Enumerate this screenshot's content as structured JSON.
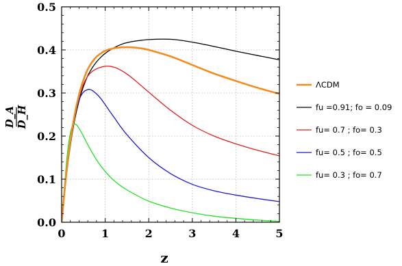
{
  "chart_data": {
    "type": "line",
    "title": "",
    "xlabel": "z",
    "ylabel_num": "D_A",
    "ylabel_den": "D_H",
    "xlim": [
      0,
      5
    ],
    "ylim": [
      0,
      0.5
    ],
    "xticks": [
      0,
      1,
      2,
      3,
      4,
      5
    ],
    "yticks": [
      0.0,
      0.1,
      0.2,
      0.3,
      0.4,
      0.5
    ],
    "grid": true,
    "legend_position": "right",
    "series": [
      {
        "name": "ΛCDM",
        "color": "#f28c1e",
        "width": 2.6,
        "x": [
          0,
          0.1,
          0.2,
          0.3,
          0.4,
          0.5,
          0.6,
          0.7,
          0.8,
          0.9,
          1.0,
          1.2,
          1.4,
          1.6,
          1.8,
          2.0,
          2.5,
          3.0,
          3.5,
          4.0,
          4.5,
          5.0
        ],
        "y": [
          0,
          0.105,
          0.188,
          0.25,
          0.296,
          0.33,
          0.355,
          0.372,
          0.384,
          0.392,
          0.398,
          0.404,
          0.406,
          0.406,
          0.404,
          0.4,
          0.385,
          0.365,
          0.345,
          0.328,
          0.312,
          0.298
        ]
      },
      {
        "name": "fu =0.91;  fo = 0.09",
        "color": "#000000",
        "width": 1.3,
        "x": [
          0,
          0.1,
          0.2,
          0.3,
          0.4,
          0.5,
          0.6,
          0.7,
          0.8,
          0.9,
          1.0,
          1.2,
          1.4,
          1.6,
          1.8,
          2.0,
          2.3,
          2.6,
          3.0,
          3.5,
          4.0,
          4.5,
          5.0
        ],
        "y": [
          0,
          0.1,
          0.178,
          0.238,
          0.282,
          0.315,
          0.34,
          0.358,
          0.372,
          0.383,
          0.392,
          0.405,
          0.414,
          0.419,
          0.422,
          0.424,
          0.425,
          0.424,
          0.418,
          0.408,
          0.397,
          0.387,
          0.377
        ]
      },
      {
        "name": "fu= 0.7 ; fo= 0.3",
        "color": "#e01f1f",
        "width": 1.3,
        "x": [
          0,
          0.1,
          0.2,
          0.3,
          0.4,
          0.5,
          0.6,
          0.7,
          0.8,
          0.9,
          1.0,
          1.1,
          1.2,
          1.3,
          1.5,
          1.7,
          2.0,
          2.5,
          3.0,
          3.5,
          4.0,
          4.5,
          5.0
        ],
        "y": [
          0,
          0.104,
          0.185,
          0.245,
          0.29,
          0.32,
          0.339,
          0.35,
          0.356,
          0.36,
          0.362,
          0.362,
          0.36,
          0.356,
          0.344,
          0.328,
          0.302,
          0.26,
          0.225,
          0.2,
          0.182,
          0.167,
          0.154
        ]
      },
      {
        "name": "fu= 0.5 ; fo= 0.5",
        "color": "#1a1ad0",
        "width": 1.3,
        "x": [
          0,
          0.1,
          0.2,
          0.3,
          0.4,
          0.5,
          0.6,
          0.65,
          0.7,
          0.8,
          0.9,
          1.0,
          1.2,
          1.5,
          2.0,
          2.5,
          3.0,
          3.5,
          4.0,
          4.5,
          5.0
        ],
        "y": [
          0,
          0.108,
          0.192,
          0.25,
          0.284,
          0.302,
          0.308,
          0.308,
          0.306,
          0.298,
          0.287,
          0.273,
          0.244,
          0.203,
          0.15,
          0.113,
          0.088,
          0.073,
          0.063,
          0.055,
          0.048
        ]
      },
      {
        "name": "fu= 0.3 ; fo= 0.7",
        "color": "#22e022",
        "width": 1.3,
        "x": [
          0,
          0.05,
          0.1,
          0.15,
          0.2,
          0.25,
          0.3,
          0.35,
          0.4,
          0.5,
          0.6,
          0.8,
          1.0,
          1.2,
          1.5,
          2.0,
          2.5,
          3.0,
          3.5,
          4.0,
          4.5,
          5.0
        ],
        "y": [
          0,
          0.065,
          0.125,
          0.175,
          0.207,
          0.224,
          0.228,
          0.225,
          0.218,
          0.2,
          0.18,
          0.145,
          0.118,
          0.097,
          0.075,
          0.049,
          0.033,
          0.022,
          0.014,
          0.009,
          0.005,
          0.002
        ]
      }
    ]
  }
}
